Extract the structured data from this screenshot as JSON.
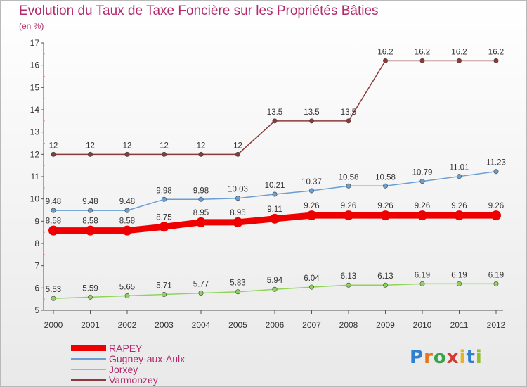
{
  "header": {
    "title": "Evolution du Taux de Taxe Foncière sur les Propriétés Bâties",
    "unit": "(en %)"
  },
  "logo": {
    "text": "Proxiti"
  },
  "chart_data": {
    "type": "line",
    "title": "Evolution du Taux de Taxe Foncière sur les Propriétés Bâties",
    "ylabel": "(en %)",
    "xlabel": "",
    "ylim": [
      5,
      17
    ],
    "yticks": [
      5,
      6,
      7,
      8,
      9,
      10,
      11,
      12,
      13,
      14,
      15,
      16,
      17
    ],
    "categories": [
      "2000",
      "2001",
      "2002",
      "2003",
      "2004",
      "2005",
      "2006",
      "2007",
      "2008",
      "2009",
      "2010",
      "2011",
      "2012"
    ],
    "grid": "none",
    "legend": "bottom-left",
    "series": [
      {
        "name": "RAPEY",
        "color": "#ee0000",
        "width": 9,
        "dot": 7,
        "values": [
          8.58,
          8.58,
          8.58,
          8.75,
          8.95,
          8.95,
          9.11,
          9.26,
          9.26,
          9.26,
          9.26,
          9.26,
          9.26
        ],
        "labels": [
          "8.58",
          "8.58",
          "8.58",
          "8.75",
          "8.95",
          "8.95",
          "9.11",
          "9.26",
          "9.26",
          "9.26",
          "9.26",
          "9.26",
          "9.26"
        ]
      },
      {
        "name": "Gugney-aux-Aulx",
        "color": "#6a9fd3",
        "width": 1.5,
        "dot": 3.2,
        "values": [
          9.48,
          9.48,
          9.48,
          9.98,
          9.98,
          10.03,
          10.21,
          10.37,
          10.58,
          10.58,
          10.79,
          11.01,
          11.23
        ],
        "labels": [
          "9.48",
          "9.48",
          "9.48",
          "9.98",
          "9.98",
          "10.03",
          "10.21",
          "10.37",
          "10.58",
          "10.58",
          "10.79",
          "11.01",
          "11.23"
        ]
      },
      {
        "name": "Jorxey",
        "color": "#8fd45a",
        "width": 1.5,
        "dot": 3.2,
        "values": [
          5.53,
          5.59,
          5.65,
          5.71,
          5.77,
          5.83,
          5.94,
          6.04,
          6.13,
          6.13,
          6.19,
          6.19,
          6.19
        ],
        "labels": [
          "5.53",
          "5.59",
          "5.65",
          "5.71",
          "5.77",
          "5.83",
          "5.94",
          "6.04",
          "6.13",
          "6.13",
          "6.19",
          "6.19",
          "6.19"
        ]
      },
      {
        "name": "Varmonzey",
        "color": "#8a3a3a",
        "width": 1.5,
        "dot": 3.2,
        "values": [
          12,
          12,
          12,
          12,
          12,
          12,
          13.5,
          13.5,
          13.5,
          16.2,
          16.2,
          16.2,
          16.2
        ],
        "labels": [
          "12",
          "12",
          "12",
          "12",
          "12",
          "12",
          "13.5",
          "13.5",
          "13.5",
          "16.2",
          "16.2",
          "16.2",
          "16.2"
        ]
      }
    ]
  }
}
